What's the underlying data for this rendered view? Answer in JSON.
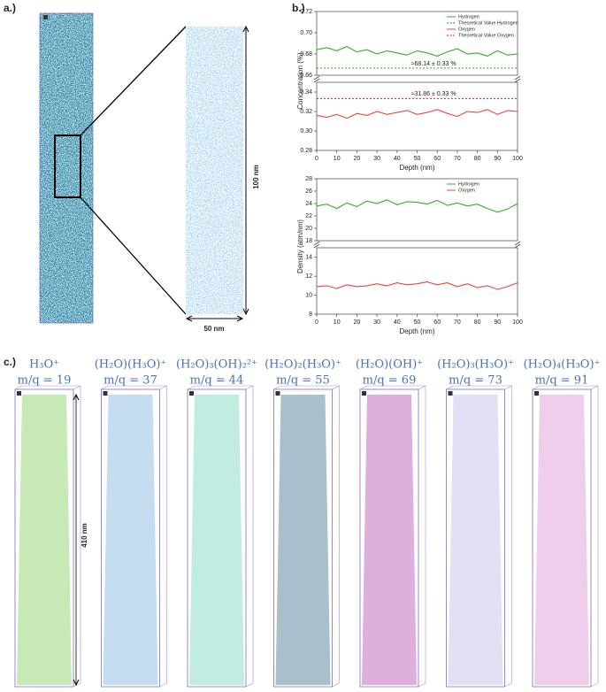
{
  "panel_a": {
    "label": "a.)",
    "scale_height": "100 nm",
    "scale_width": "50 nm"
  },
  "panel_b": {
    "label": "b.)"
  },
  "panel_c": {
    "label": "c.)",
    "scale_height": "410 nm",
    "ions": [
      {
        "formula": "H₃O⁺",
        "mq": "m/q = 19",
        "color": "#5cc12c"
      },
      {
        "formula": "(H₂O)(H₃O)⁺",
        "mq": "m/q = 37",
        "color": "#5a9fd4"
      },
      {
        "formula": "(H₂O)₃(OH)₂²⁺",
        "mq": "m/q = 44",
        "color": "#4cc8a8"
      },
      {
        "formula": "(H₂O)₂(H₃O)⁺",
        "mq": "m/q = 55",
        "color": "#0a4a6e"
      },
      {
        "formula": "(H₂O)(OH)⁺",
        "mq": "m/q = 69",
        "color": "#a0169a"
      },
      {
        "formula": "(H₂O)₃(H₃O)⁺",
        "mq": "m/q = 73",
        "color": "#a8a6e0"
      },
      {
        "formula": "(H₂O)₄(H₃O)⁺",
        "mq": "m/q = 91",
        "color": "#d66fc8"
      }
    ]
  },
  "chart_data": [
    {
      "type": "line",
      "legend": "top-right",
      "x": [
        0,
        5,
        10,
        15,
        20,
        25,
        30,
        35,
        40,
        45,
        50,
        55,
        60,
        65,
        70,
        75,
        80,
        85,
        90,
        95,
        100
      ],
      "xlim": [
        0,
        100
      ],
      "ylim": [
        0.66,
        0.72
      ],
      "yticks": [
        {
          "value": 0.66,
          "label": "0.66"
        },
        {
          "value": 0.68,
          "label": "0.68"
        },
        {
          "value": 0.7,
          "label": "0.70"
        },
        {
          "value": 0.72,
          "label": "0.72"
        }
      ],
      "series": [
        {
          "name": "Hydrogen",
          "color": "#3aaa2a",
          "values": [
            0.684,
            0.686,
            0.683,
            0.687,
            0.682,
            0.684,
            0.68,
            0.683,
            0.681,
            0.679,
            0.683,
            0.681,
            0.678,
            0.682,
            0.685,
            0.68,
            0.681,
            0.678,
            0.683,
            0.679,
            0.68
          ]
        }
      ],
      "hlines": [
        {
          "name": "Theoretical Value Hydrogen",
          "color": "#2a8a2a",
          "value": 0.6667,
          "label": "≈68.14 ± 0.33 %"
        }
      ]
    },
    {
      "type": "line",
      "x": [
        0,
        5,
        10,
        15,
        20,
        25,
        30,
        35,
        40,
        45,
        50,
        55,
        60,
        65,
        70,
        75,
        80,
        85,
        90,
        95,
        100
      ],
      "xlim": [
        0,
        100
      ],
      "xticks": [
        0,
        10,
        20,
        30,
        40,
        50,
        60,
        70,
        80,
        90,
        100
      ],
      "xlabel": "Depth (nm)",
      "ylabel": "Concentration (%)",
      "ylim": [
        0.28,
        0.35
      ],
      "yticks": [
        {
          "value": 0.28,
          "label": "0.28"
        },
        {
          "value": 0.3,
          "label": "0.30"
        },
        {
          "value": 0.32,
          "label": "0.32"
        },
        {
          "value": 0.34,
          "label": "0.34"
        }
      ],
      "series": [
        {
          "name": "Oxygen",
          "color": "#e8463a",
          "values": [
            0.316,
            0.314,
            0.317,
            0.313,
            0.318,
            0.316,
            0.32,
            0.317,
            0.319,
            0.321,
            0.317,
            0.319,
            0.322,
            0.318,
            0.315,
            0.32,
            0.319,
            0.322,
            0.317,
            0.321,
            0.32
          ]
        }
      ],
      "hlines": [
        {
          "name": "Theoretical Value Oxygen",
          "color": "#d02a2a",
          "value": 0.3333,
          "label": "≈31.86 ± 0.33 %"
        }
      ]
    },
    {
      "type": "line",
      "legend": "top-right",
      "x": [
        0,
        5,
        10,
        15,
        20,
        25,
        30,
        35,
        40,
        45,
        50,
        55,
        60,
        65,
        70,
        75,
        80,
        85,
        90,
        95,
        100
      ],
      "xlim": [
        0,
        100
      ],
      "ylim": [
        18,
        28
      ],
      "yticks": [
        18,
        20,
        22,
        24,
        26,
        28
      ],
      "series": [
        {
          "name": "Hydrogen",
          "color": "#3aaa2a",
          "values": [
            23.6,
            23.9,
            23.2,
            24.1,
            23.5,
            24.4,
            24.0,
            24.6,
            23.8,
            24.3,
            24.2,
            23.9,
            24.5,
            23.7,
            24.1,
            23.6,
            23.9,
            23.2,
            22.6,
            23.1,
            24.0
          ]
        }
      ]
    },
    {
      "type": "line",
      "x": [
        0,
        5,
        10,
        15,
        20,
        25,
        30,
        35,
        40,
        45,
        50,
        55,
        60,
        65,
        70,
        75,
        80,
        85,
        90,
        95,
        100
      ],
      "xlim": [
        0,
        100
      ],
      "xticks": [
        0,
        10,
        20,
        30,
        40,
        50,
        60,
        70,
        80,
        90,
        100
      ],
      "xlabel": "Depth (nm)",
      "ylabel": "Density (atm/nm)",
      "ylim": [
        8,
        15
      ],
      "yticks": [
        8,
        10,
        12,
        14
      ],
      "series": [
        {
          "name": "Oxygen",
          "color": "#e8463a",
          "values": [
            10.9,
            11.0,
            10.7,
            11.1,
            10.9,
            11.0,
            11.2,
            11.0,
            11.3,
            11.1,
            11.2,
            11.4,
            11.1,
            11.3,
            10.9,
            11.2,
            10.8,
            11.0,
            10.6,
            10.9,
            11.3
          ]
        }
      ]
    }
  ]
}
